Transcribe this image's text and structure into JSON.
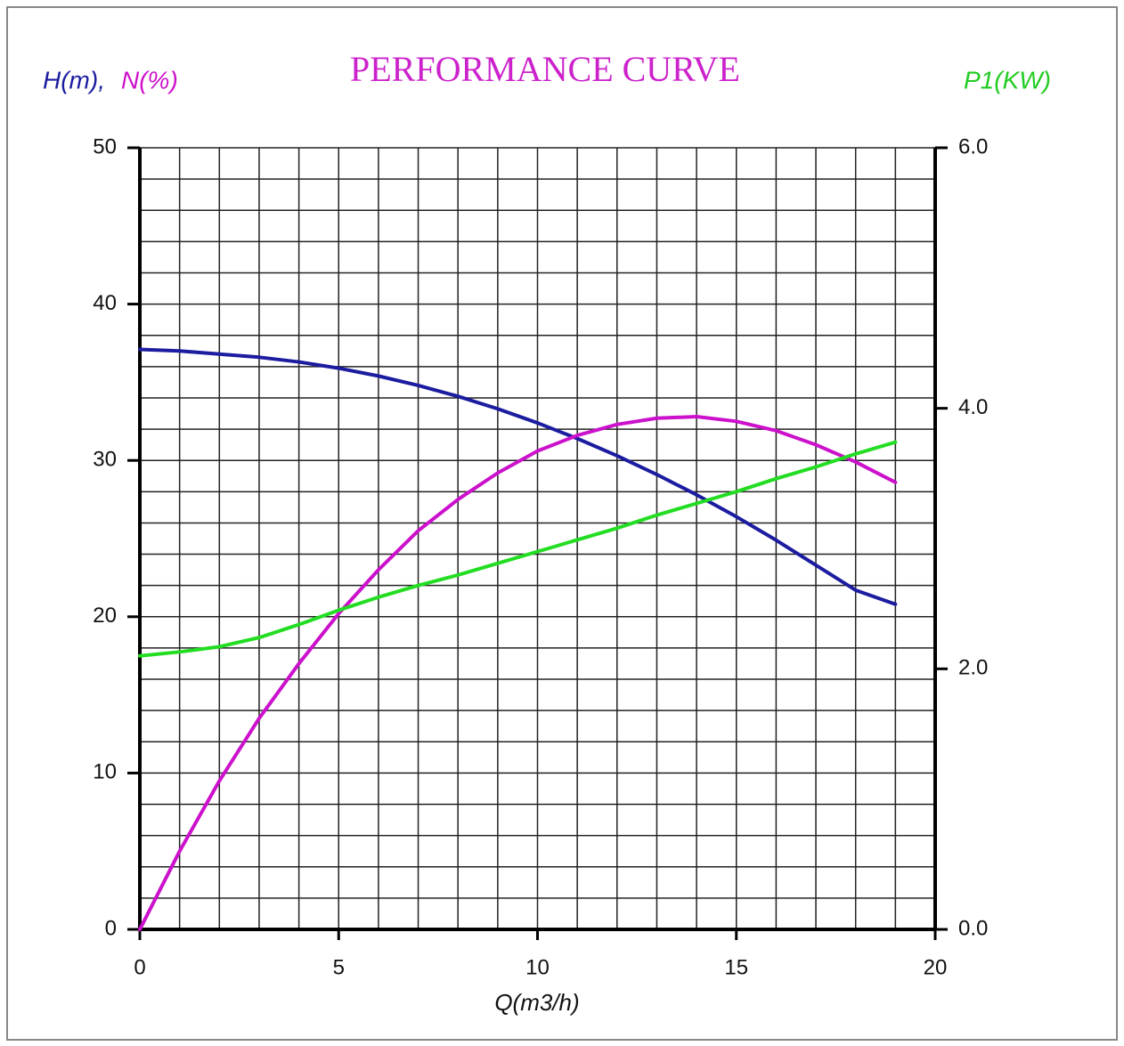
{
  "chart_data": {
    "type": "line",
    "title": "PERFORMANCE CURVE",
    "y_label_parts": [
      "H(m),",
      "N(%)"
    ],
    "y2_label": "P1(KW)",
    "x_label": "Q(m3/h)",
    "x": [
      0,
      1,
      2,
      3,
      4,
      5,
      6,
      7,
      8,
      9,
      10,
      11,
      12,
      13,
      14,
      15,
      16,
      17,
      18,
      19
    ],
    "series": [
      {
        "name": "H(m)",
        "color": "#1c1ca0",
        "values": [
          37.1,
          37.0,
          36.8,
          36.6,
          36.3,
          35.9,
          35.4,
          34.8,
          34.1,
          33.3,
          32.4,
          31.4,
          30.3,
          29.1,
          27.8,
          26.4,
          24.9,
          23.3,
          21.7,
          20.8
        ]
      },
      {
        "name": "N(%)",
        "color": "#cc11cc",
        "values": [
          0,
          5.0,
          9.5,
          13.5,
          17.0,
          20.2,
          23.0,
          25.5,
          27.5,
          29.2,
          30.6,
          31.6,
          32.3,
          32.7,
          32.8,
          32.5,
          31.9,
          31.0,
          29.9,
          28.6
        ]
      },
      {
        "name": "P1(KW)",
        "color": "#22dd22",
        "axis": "y2",
        "values": [
          2.1,
          2.13,
          2.17,
          2.24,
          2.34,
          2.45,
          2.55,
          2.64,
          2.72,
          2.81,
          2.9,
          2.99,
          3.08,
          3.18,
          3.27,
          3.36,
          3.46,
          3.55,
          3.65,
          3.74
        ]
      }
    ],
    "xlim": [
      0,
      20
    ],
    "xticks": [
      0,
      5,
      10,
      15,
      20
    ],
    "ylim": [
      0,
      50
    ],
    "yticks": [
      0,
      10,
      20,
      30,
      40,
      50
    ],
    "y2lim": [
      0,
      6
    ],
    "y2ticks": [
      {
        "value": 0,
        "label": "0.0"
      },
      {
        "value": 2,
        "label": "2.0"
      },
      {
        "value": 4,
        "label": "4.0"
      },
      {
        "value": 6,
        "label": "6.0"
      }
    ],
    "grid": true,
    "xgrid": [
      0,
      1,
      2,
      3,
      4,
      5,
      6,
      7,
      8,
      9,
      10,
      11,
      12,
      13,
      14,
      15,
      16,
      17,
      18,
      19,
      20
    ],
    "ygrid": [
      0,
      2,
      4,
      6,
      8,
      10,
      12,
      14,
      16,
      18,
      20,
      22,
      24,
      26,
      28,
      30,
      32,
      34,
      36,
      38,
      40,
      42,
      44,
      46,
      48,
      50
    ]
  }
}
